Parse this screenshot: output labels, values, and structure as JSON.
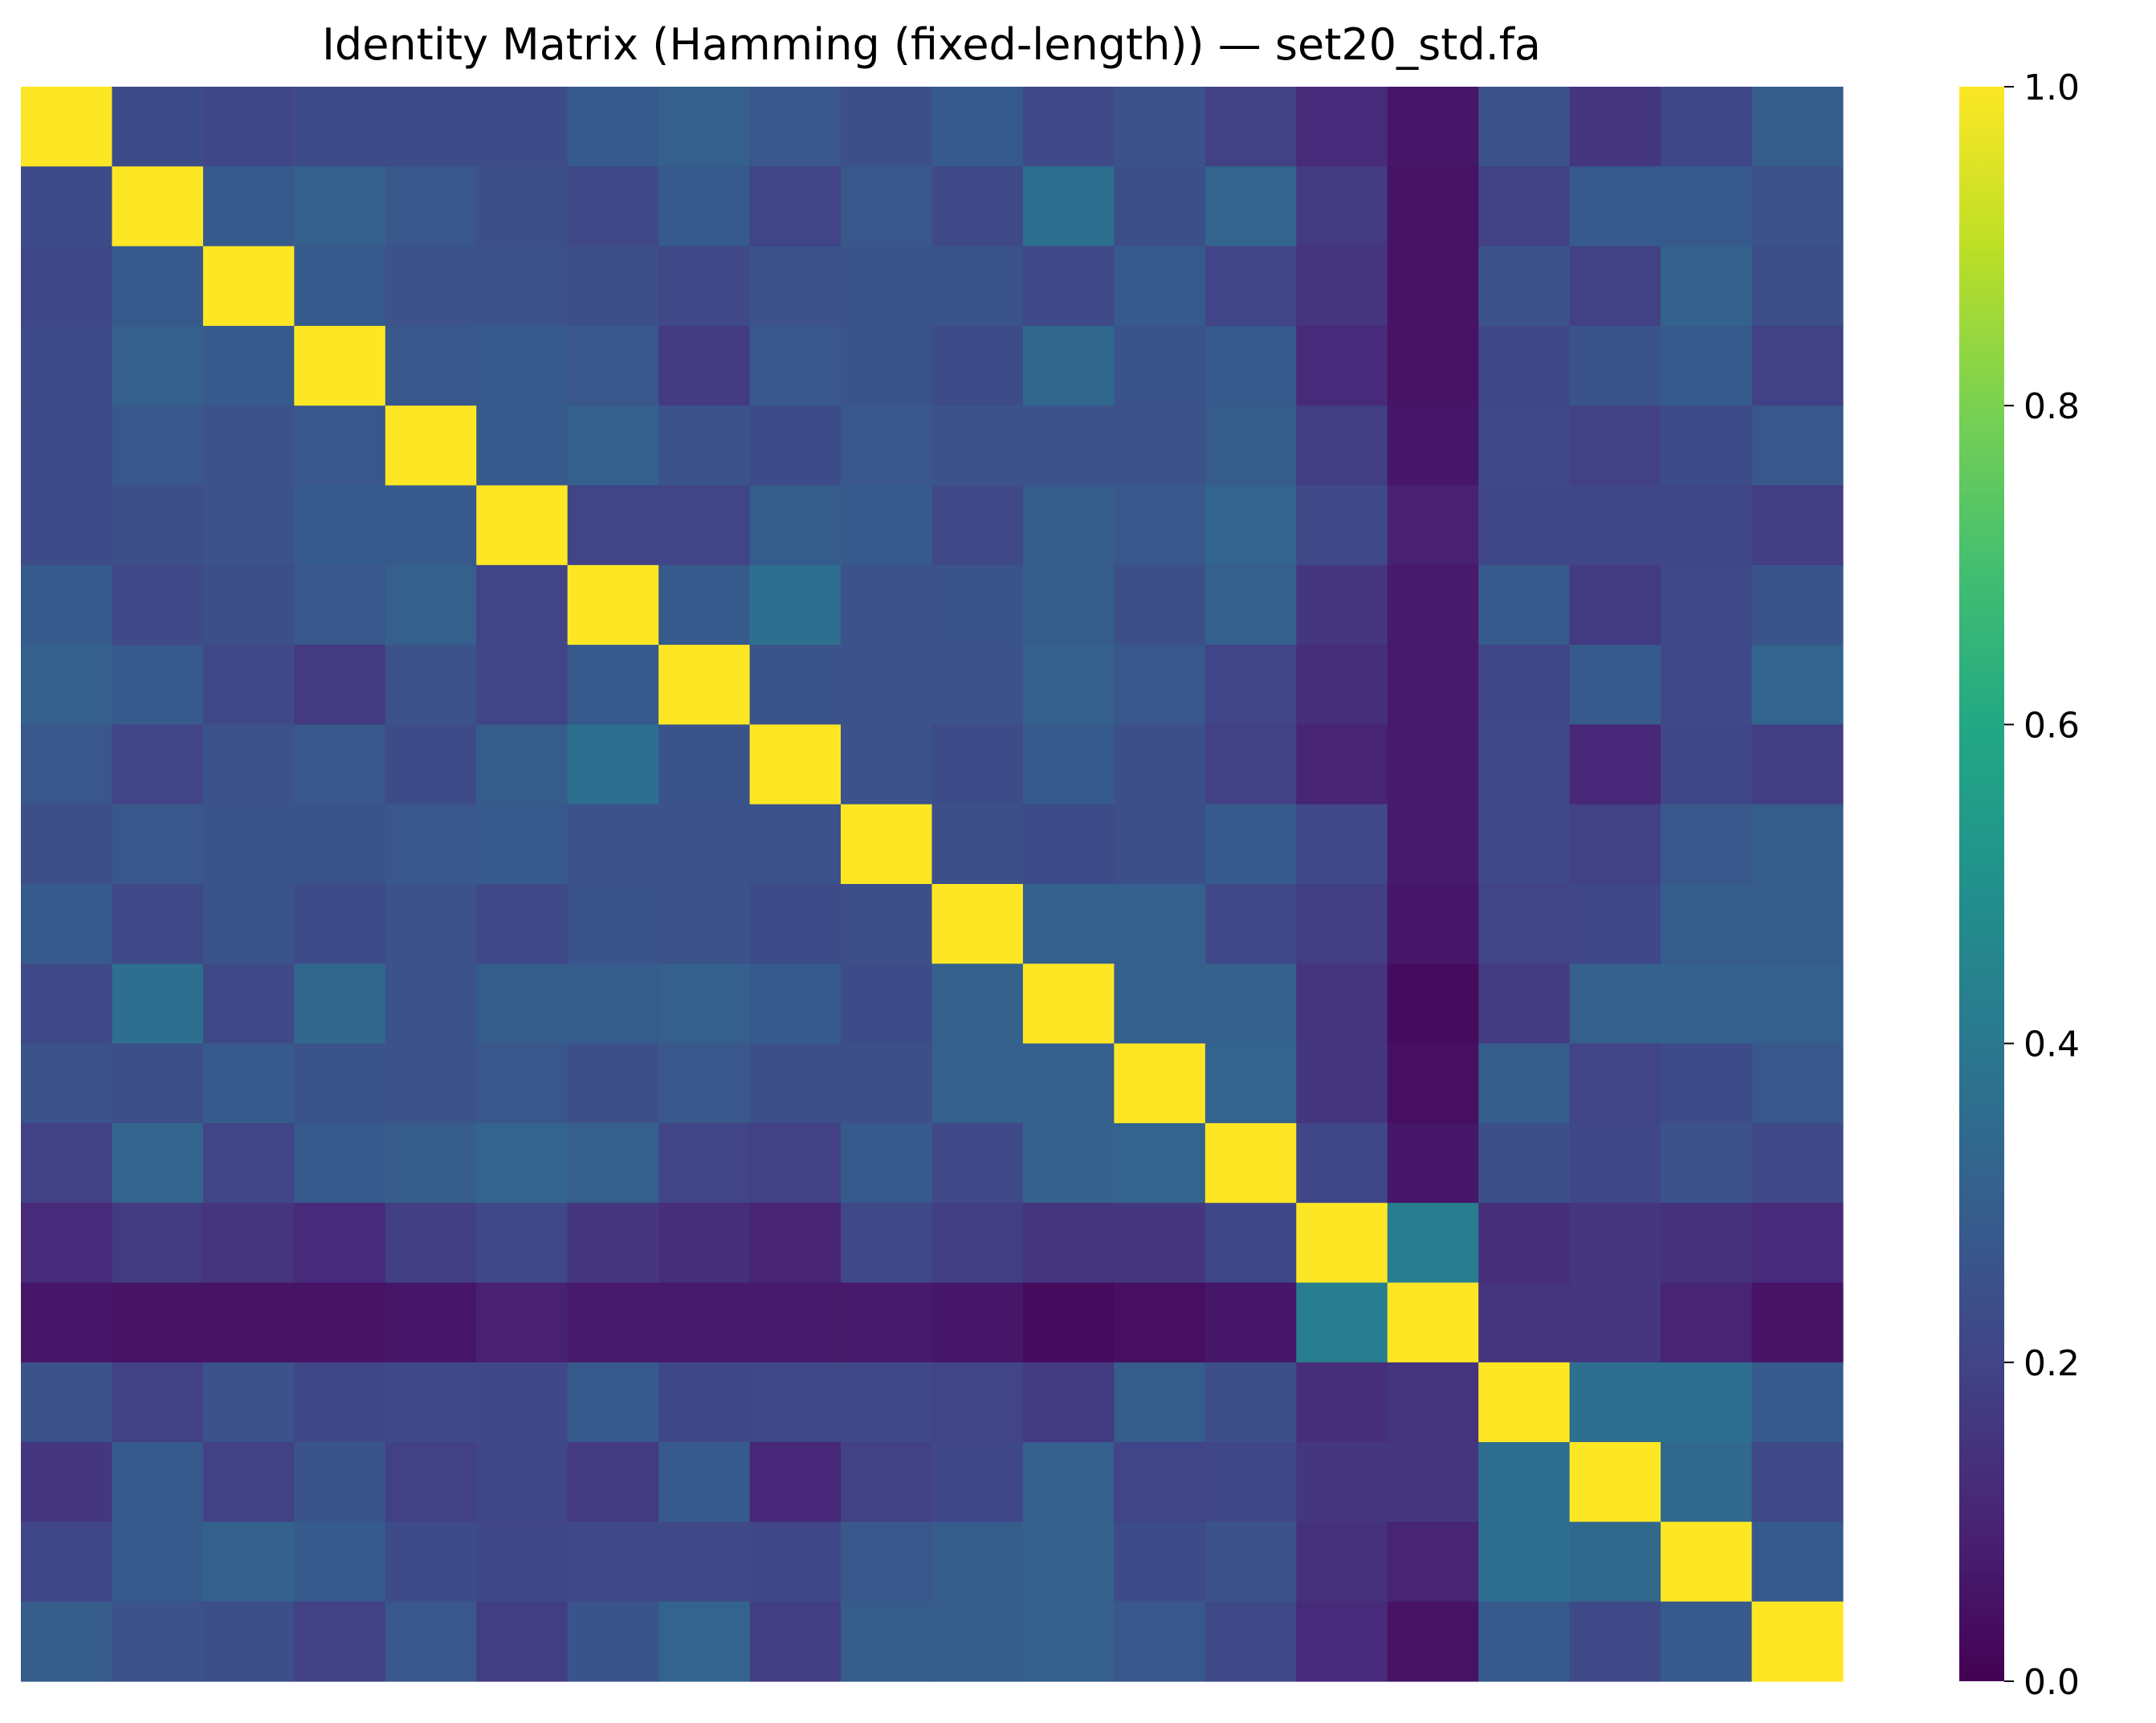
{
  "chart_data": {
    "type": "heatmap",
    "title": "Identity Matrix (Hamming (fixed-length)) — set20_std.fa",
    "colormap": "viridis",
    "vmin": 0.0,
    "vmax": 1.0,
    "colorbar_ticks": [
      "0.0",
      "0.2",
      "0.4",
      "0.6",
      "0.8",
      "1.0"
    ],
    "colorbar_tick_values": [
      0.0,
      0.2,
      0.4,
      0.6,
      0.8,
      1.0
    ],
    "xlabels_visible": false,
    "ylabels_visible": false,
    "matrix": [
      [
        1,
        0.23,
        0.21,
        0.23,
        0.23,
        0.23,
        0.28,
        0.3,
        0.27,
        0.24,
        0.28,
        0.22,
        0.25,
        0.19,
        0.12,
        0.06,
        0.25,
        0.16,
        0.21,
        0.29
      ],
      [
        0.23,
        1,
        0.28,
        0.3,
        0.27,
        0.24,
        0.22,
        0.28,
        0.2,
        0.27,
        0.22,
        0.36,
        0.24,
        0.32,
        0.17,
        0.05,
        0.19,
        0.28,
        0.28,
        0.25
      ],
      [
        0.21,
        0.28,
        1,
        0.28,
        0.25,
        0.25,
        0.24,
        0.22,
        0.25,
        0.26,
        0.26,
        0.22,
        0.28,
        0.2,
        0.15,
        0.05,
        0.25,
        0.19,
        0.31,
        0.24
      ],
      [
        0.23,
        0.3,
        0.28,
        1,
        0.27,
        0.28,
        0.27,
        0.17,
        0.27,
        0.26,
        0.23,
        0.33,
        0.26,
        0.28,
        0.12,
        0.05,
        0.21,
        0.26,
        0.28,
        0.19
      ],
      [
        0.23,
        0.27,
        0.25,
        0.27,
        1,
        0.28,
        0.3,
        0.25,
        0.23,
        0.27,
        0.25,
        0.25,
        0.25,
        0.29,
        0.18,
        0.06,
        0.22,
        0.19,
        0.23,
        0.27
      ],
      [
        0.23,
        0.24,
        0.25,
        0.28,
        0.28,
        1,
        0.2,
        0.2,
        0.29,
        0.28,
        0.22,
        0.29,
        0.27,
        0.32,
        0.22,
        0.09,
        0.21,
        0.21,
        0.21,
        0.18
      ],
      [
        0.28,
        0.22,
        0.24,
        0.27,
        0.3,
        0.2,
        1,
        0.28,
        0.36,
        0.25,
        0.26,
        0.29,
        0.24,
        0.3,
        0.16,
        0.07,
        0.28,
        0.17,
        0.22,
        0.26
      ],
      [
        0.3,
        0.28,
        0.22,
        0.17,
        0.25,
        0.2,
        0.28,
        1,
        0.26,
        0.25,
        0.25,
        0.3,
        0.27,
        0.2,
        0.13,
        0.07,
        0.21,
        0.28,
        0.22,
        0.32
      ],
      [
        0.27,
        0.2,
        0.25,
        0.27,
        0.23,
        0.29,
        0.36,
        0.26,
        1,
        0.25,
        0.23,
        0.28,
        0.24,
        0.19,
        0.1,
        0.07,
        0.22,
        0.11,
        0.21,
        0.18
      ],
      [
        0.24,
        0.27,
        0.26,
        0.26,
        0.27,
        0.28,
        0.25,
        0.25,
        0.25,
        1,
        0.24,
        0.23,
        0.24,
        0.28,
        0.22,
        0.07,
        0.22,
        0.19,
        0.27,
        0.29
      ],
      [
        0.28,
        0.22,
        0.26,
        0.23,
        0.25,
        0.22,
        0.26,
        0.25,
        0.23,
        0.24,
        1,
        0.31,
        0.3,
        0.22,
        0.18,
        0.06,
        0.2,
        0.21,
        0.29,
        0.29
      ],
      [
        0.22,
        0.36,
        0.22,
        0.33,
        0.25,
        0.29,
        0.29,
        0.3,
        0.28,
        0.23,
        0.31,
        1,
        0.3,
        0.31,
        0.15,
        0.03,
        0.17,
        0.3,
        0.31,
        0.3
      ],
      [
        0.25,
        0.24,
        0.28,
        0.26,
        0.25,
        0.27,
        0.24,
        0.27,
        0.24,
        0.24,
        0.3,
        0.3,
        1,
        0.32,
        0.16,
        0.04,
        0.29,
        0.2,
        0.23,
        0.27
      ],
      [
        0.19,
        0.32,
        0.2,
        0.28,
        0.29,
        0.32,
        0.3,
        0.2,
        0.19,
        0.28,
        0.22,
        0.31,
        0.32,
        1,
        0.21,
        0.06,
        0.24,
        0.21,
        0.25,
        0.22
      ],
      [
        0.12,
        0.17,
        0.15,
        0.12,
        0.18,
        0.22,
        0.16,
        0.13,
        0.1,
        0.22,
        0.18,
        0.15,
        0.16,
        0.21,
        1,
        0.42,
        0.13,
        0.16,
        0.14,
        0.12
      ],
      [
        0.06,
        0.05,
        0.05,
        0.05,
        0.06,
        0.09,
        0.07,
        0.07,
        0.07,
        0.07,
        0.06,
        0.03,
        0.04,
        0.06,
        0.42,
        1,
        0.15,
        0.16,
        0.1,
        0.05
      ],
      [
        0.25,
        0.19,
        0.25,
        0.21,
        0.22,
        0.21,
        0.28,
        0.21,
        0.22,
        0.22,
        0.2,
        0.17,
        0.29,
        0.24,
        0.13,
        0.15,
        1,
        0.36,
        0.36,
        0.28
      ],
      [
        0.16,
        0.28,
        0.19,
        0.26,
        0.19,
        0.21,
        0.17,
        0.28,
        0.11,
        0.19,
        0.21,
        0.3,
        0.2,
        0.21,
        0.16,
        0.16,
        0.36,
        1,
        0.34,
        0.22
      ],
      [
        0.21,
        0.28,
        0.31,
        0.28,
        0.23,
        0.21,
        0.22,
        0.22,
        0.21,
        0.27,
        0.29,
        0.31,
        0.23,
        0.25,
        0.14,
        0.1,
        0.36,
        0.34,
        1,
        0.28
      ],
      [
        0.29,
        0.25,
        0.24,
        0.19,
        0.27,
        0.18,
        0.26,
        0.32,
        0.18,
        0.29,
        0.29,
        0.3,
        0.27,
        0.22,
        0.12,
        0.05,
        0.28,
        0.22,
        0.28,
        1
      ]
    ]
  }
}
